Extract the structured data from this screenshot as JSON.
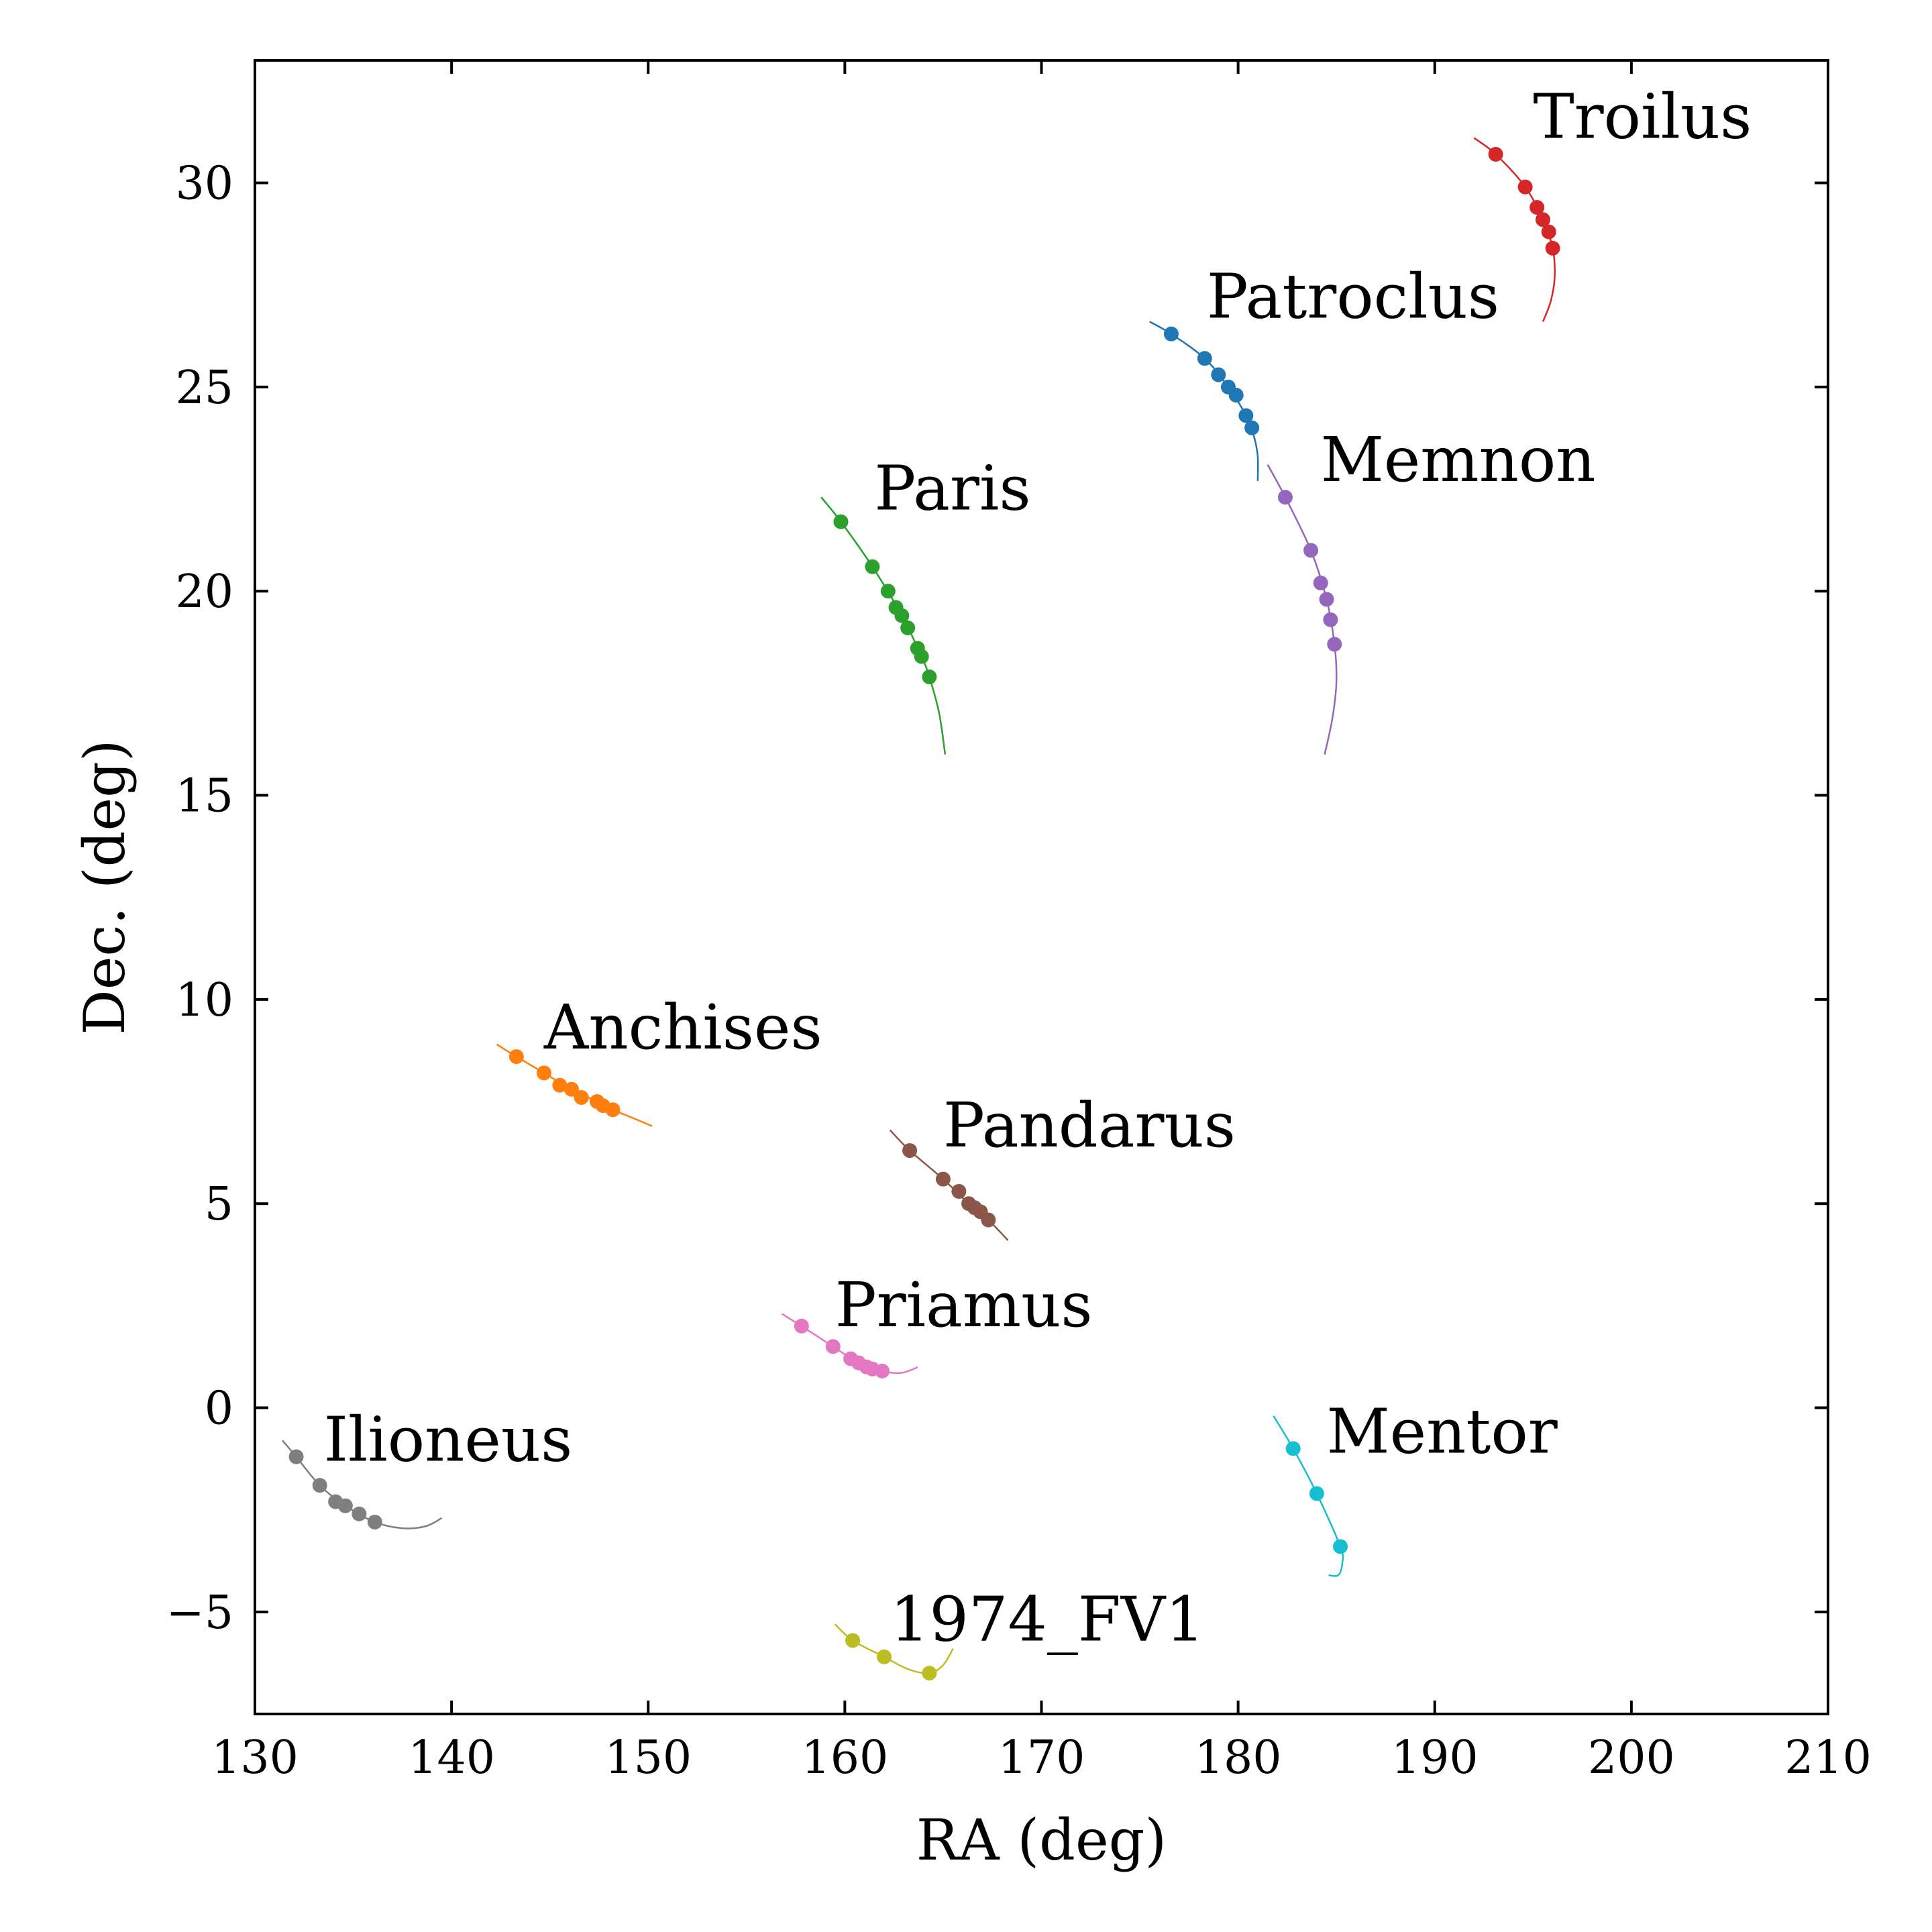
{
  "chart_data": {
    "type": "scatter",
    "title": "",
    "xlabel": "RA (deg)",
    "ylabel": "Dec. (deg)",
    "xlim": [
      130,
      210
    ],
    "ylim": [
      -7.5,
      33
    ],
    "xticks": [
      130,
      140,
      150,
      160,
      170,
      180,
      190,
      200,
      210
    ],
    "yticks": [
      -5,
      0,
      5,
      10,
      15,
      20,
      25,
      30
    ],
    "xtick_labels": [
      "130",
      "140",
      "150",
      "160",
      "170",
      "180",
      "190",
      "200",
      "210"
    ],
    "ytick_labels": [
      "−5",
      "0",
      "5",
      "10",
      "15",
      "20",
      "25",
      "30"
    ],
    "grid": false,
    "legend": "none",
    "series": [
      {
        "name": "Troilus",
        "color": "#d62728",
        "label_at": [
          195,
          31.1
        ],
        "points": [
          [
            193.1,
            30.7
          ],
          [
            194.6,
            29.9
          ],
          [
            195.2,
            29.4
          ],
          [
            195.5,
            29.1
          ],
          [
            195.8,
            28.8
          ],
          [
            196.0,
            28.4
          ]
        ],
        "track": [
          [
            192.0,
            31.1
          ],
          [
            193.1,
            30.7
          ],
          [
            194.6,
            29.9
          ],
          [
            195.5,
            29.1
          ],
          [
            196.0,
            28.4
          ],
          [
            196.1,
            27.7
          ],
          [
            195.9,
            27.1
          ],
          [
            195.5,
            26.6
          ]
        ]
      },
      {
        "name": "Patroclus",
        "color": "#1f77b4",
        "label_at": [
          178.4,
          26.7
        ],
        "points": [
          [
            176.6,
            26.3
          ],
          [
            178.3,
            25.7
          ],
          [
            179.0,
            25.3
          ],
          [
            179.5,
            25.0
          ],
          [
            179.9,
            24.8
          ],
          [
            180.4,
            24.3
          ],
          [
            180.7,
            24.0
          ]
        ],
        "track": [
          [
            175.5,
            26.6
          ],
          [
            176.6,
            26.3
          ],
          [
            178.3,
            25.7
          ],
          [
            179.5,
            25.0
          ],
          [
            180.4,
            24.3
          ],
          [
            180.8,
            23.8
          ],
          [
            181.0,
            23.3
          ],
          [
            181.0,
            22.7
          ]
        ]
      },
      {
        "name": "Memnon",
        "color": "#9467bd",
        "label_at": [
          184.2,
          22.7
        ],
        "points": [
          [
            182.4,
            22.3
          ],
          [
            183.7,
            21.0
          ],
          [
            184.2,
            20.2
          ],
          [
            184.5,
            19.8
          ],
          [
            184.7,
            19.3
          ],
          [
            184.9,
            18.7
          ]
        ],
        "track": [
          [
            181.5,
            23.1
          ],
          [
            182.4,
            22.3
          ],
          [
            183.7,
            21.0
          ],
          [
            184.5,
            19.8
          ],
          [
            184.9,
            18.7
          ],
          [
            185.0,
            17.8
          ],
          [
            184.8,
            16.9
          ],
          [
            184.4,
            16.0
          ]
        ]
      },
      {
        "name": "Paris",
        "color": "#2ca02c",
        "label_at": [
          161.5,
          22.0
        ],
        "points": [
          [
            159.8,
            21.7
          ],
          [
            161.4,
            20.6
          ],
          [
            162.2,
            20.0
          ],
          [
            162.6,
            19.6
          ],
          [
            162.9,
            19.4
          ],
          [
            163.2,
            19.1
          ],
          [
            163.7,
            18.6
          ],
          [
            163.9,
            18.4
          ],
          [
            164.3,
            17.9
          ]
        ],
        "track": [
          [
            158.8,
            22.3
          ],
          [
            159.8,
            21.7
          ],
          [
            161.4,
            20.6
          ],
          [
            162.9,
            19.4
          ],
          [
            163.9,
            18.4
          ],
          [
            164.3,
            17.9
          ],
          [
            164.8,
            17.0
          ],
          [
            165.1,
            16.0
          ]
        ]
      },
      {
        "name": "Anchises",
        "color": "#ff7f0e",
        "label_at": [
          144.7,
          8.8
        ],
        "points": [
          [
            143.3,
            8.6
          ],
          [
            144.7,
            8.2
          ],
          [
            145.5,
            7.9
          ],
          [
            146.1,
            7.8
          ],
          [
            146.6,
            7.6
          ],
          [
            147.4,
            7.5
          ],
          [
            147.7,
            7.4
          ],
          [
            148.2,
            7.3
          ]
        ],
        "track": [
          [
            142.3,
            8.9
          ],
          [
            143.3,
            8.6
          ],
          [
            144.7,
            8.2
          ],
          [
            146.1,
            7.8
          ],
          [
            147.4,
            7.5
          ],
          [
            148.2,
            7.3
          ],
          [
            149.2,
            7.1
          ],
          [
            150.2,
            6.9
          ]
        ]
      },
      {
        "name": "Pandarus",
        "color": "#8c564b",
        "label_at": [
          165.0,
          6.4
        ],
        "points": [
          [
            163.3,
            6.3
          ],
          [
            165.0,
            5.6
          ],
          [
            165.8,
            5.3
          ],
          [
            166.3,
            5.0
          ],
          [
            166.6,
            4.9
          ],
          [
            166.9,
            4.8
          ],
          [
            167.3,
            4.6
          ]
        ],
        "track": [
          [
            162.3,
            6.8
          ],
          [
            163.3,
            6.3
          ],
          [
            165.0,
            5.6
          ],
          [
            166.3,
            5.0
          ],
          [
            167.3,
            4.6
          ],
          [
            168.3,
            4.1
          ]
        ]
      },
      {
        "name": "Priamus",
        "color": "#e377c2",
        "label_at": [
          159.5,
          2.0
        ],
        "points": [
          [
            157.8,
            2.0
          ],
          [
            159.4,
            1.5
          ],
          [
            160.3,
            1.2
          ],
          [
            160.7,
            1.1
          ],
          [
            161.1,
            1.0
          ],
          [
            161.4,
            0.95
          ],
          [
            161.9,
            0.9
          ]
        ],
        "track": [
          [
            156.8,
            2.3
          ],
          [
            157.8,
            2.0
          ],
          [
            159.4,
            1.5
          ],
          [
            160.7,
            1.1
          ],
          [
            161.9,
            0.9
          ],
          [
            162.8,
            0.85
          ],
          [
            163.5,
            0.95
          ],
          [
            163.7,
            1.0
          ]
        ]
      },
      {
        "name": "Ilioneus",
        "color": "#7f7f7f",
        "label_at": [
          133.5,
          -1.3
        ],
        "points": [
          [
            132.1,
            -1.2
          ],
          [
            133.3,
            -1.9
          ],
          [
            134.1,
            -2.3
          ],
          [
            134.6,
            -2.4
          ],
          [
            135.3,
            -2.6
          ],
          [
            136.1,
            -2.8
          ]
        ],
        "track": [
          [
            131.4,
            -0.8
          ],
          [
            132.1,
            -1.2
          ],
          [
            133.3,
            -1.9
          ],
          [
            134.6,
            -2.4
          ],
          [
            136.1,
            -2.8
          ],
          [
            137.5,
            -2.95
          ],
          [
            138.7,
            -2.9
          ],
          [
            139.5,
            -2.7
          ]
        ]
      },
      {
        "name": "Mentor",
        "color": "#17becf",
        "label_at": [
          184.5,
          -1.1
        ],
        "points": [
          [
            182.8,
            -1.0
          ],
          [
            184.0,
            -2.1
          ],
          [
            185.2,
            -3.4
          ]
        ],
        "track": [
          [
            181.8,
            -0.2
          ],
          [
            182.8,
            -1.0
          ],
          [
            184.0,
            -2.1
          ],
          [
            185.2,
            -3.4
          ],
          [
            185.3,
            -3.8
          ],
          [
            185.1,
            -4.1
          ],
          [
            184.6,
            -4.1
          ]
        ]
      },
      {
        "name": "1974_FV1",
        "color": "#bcbd22",
        "label_at": [
          162.3,
          -5.7
        ],
        "points": [
          [
            160.4,
            -5.7
          ],
          [
            162.0,
            -6.1
          ],
          [
            164.3,
            -6.5
          ]
        ],
        "track": [
          [
            159.5,
            -5.3
          ],
          [
            160.4,
            -5.7
          ],
          [
            162.0,
            -6.1
          ],
          [
            163.2,
            -6.4
          ],
          [
            164.3,
            -6.5
          ],
          [
            165.0,
            -6.3
          ],
          [
            165.5,
            -5.9
          ]
        ]
      }
    ]
  }
}
